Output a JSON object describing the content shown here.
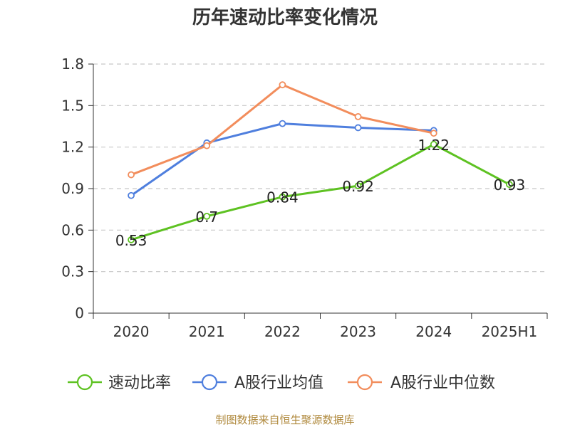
{
  "chart_data": {
    "type": "line",
    "title": "历年速动比率变化情况",
    "categories": [
      "2020",
      "2021",
      "2022",
      "2023",
      "2024",
      "2025H1"
    ],
    "ylim": [
      0,
      1.8
    ],
    "yticks": [
      "0",
      "0.3",
      "0.6",
      "0.9",
      "1.2",
      "1.5",
      "1.8"
    ],
    "grid": true,
    "legend_position": "bottom",
    "series": [
      {
        "name": "速动比率",
        "color": "#5ec222",
        "values": [
          0.53,
          0.7,
          0.84,
          0.92,
          1.22,
          0.93
        ],
        "labels": [
          "0.53",
          "0.7",
          "0.84",
          "0.92",
          "1.22",
          "0.93"
        ]
      },
      {
        "name": "A股行业均值",
        "color": "#4f7fde",
        "values": [
          0.85,
          1.23,
          1.37,
          1.34,
          1.32,
          null
        ]
      },
      {
        "name": "A股行业中位数",
        "color": "#f28d5c",
        "values": [
          1.0,
          1.21,
          1.65,
          1.42,
          1.3,
          null
        ]
      }
    ],
    "source": "制图数据来自恒生聚源数据库"
  }
}
